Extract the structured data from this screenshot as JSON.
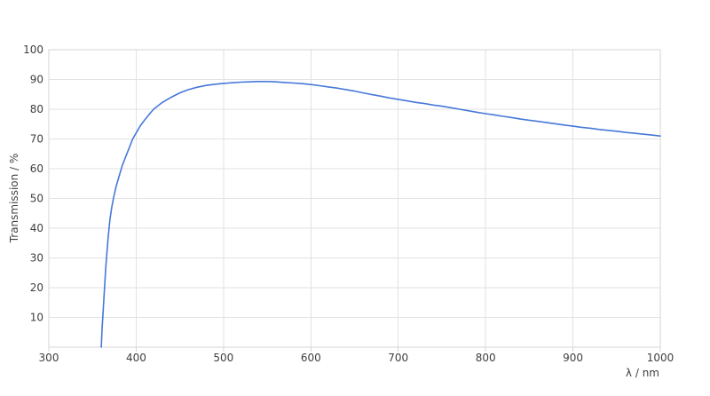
{
  "chart_data": {
    "type": "line",
    "title": "",
    "xlabel": "λ / nm",
    "ylabel": "Transmission / %",
    "xlim": [
      300,
      1000
    ],
    "ylim": [
      0,
      100
    ],
    "xticks": [
      300,
      400,
      500,
      600,
      700,
      800,
      900,
      1000
    ],
    "yticks": [
      10,
      20,
      30,
      40,
      50,
      60,
      70,
      80,
      90,
      100
    ],
    "grid": true,
    "legend": false,
    "colors": {
      "line": "#4678d8",
      "grid": "#e2e2e2",
      "border": "#d4d4d4",
      "text": "#3f3f3f",
      "background": "#ffffff"
    },
    "series": [
      {
        "name": "Transmission",
        "color": "#4678d8",
        "points": [
          [
            360,
            0
          ],
          [
            361,
            6
          ],
          [
            362,
            11
          ],
          [
            363,
            16
          ],
          [
            364,
            21
          ],
          [
            365,
            26
          ],
          [
            366,
            30
          ],
          [
            368,
            37
          ],
          [
            370,
            43
          ],
          [
            372,
            47
          ],
          [
            374,
            50
          ],
          [
            377,
            54
          ],
          [
            380,
            57
          ],
          [
            384,
            61
          ],
          [
            388,
            64
          ],
          [
            392,
            67
          ],
          [
            396,
            70
          ],
          [
            400,
            72
          ],
          [
            405,
            74.5
          ],
          [
            410,
            76.5
          ],
          [
            415,
            78.3
          ],
          [
            420,
            80
          ],
          [
            430,
            82.3
          ],
          [
            440,
            84
          ],
          [
            450,
            85.5
          ],
          [
            460,
            86.6
          ],
          [
            470,
            87.4
          ],
          [
            480,
            88
          ],
          [
            490,
            88.4
          ],
          [
            500,
            88.7
          ],
          [
            510,
            88.9
          ],
          [
            520,
            89.1
          ],
          [
            530,
            89.2
          ],
          [
            540,
            89.3
          ],
          [
            550,
            89.3
          ],
          [
            560,
            89.2
          ],
          [
            570,
            89
          ],
          [
            580,
            88.8
          ],
          [
            590,
            88.6
          ],
          [
            600,
            88.3
          ],
          [
            610,
            87.9
          ],
          [
            620,
            87.5
          ],
          [
            630,
            87.1
          ],
          [
            640,
            86.6
          ],
          [
            650,
            86.1
          ],
          [
            660,
            85.5
          ],
          [
            670,
            84.9
          ],
          [
            680,
            84.4
          ],
          [
            690,
            83.8
          ],
          [
            700,
            83.3
          ],
          [
            710,
            82.8
          ],
          [
            720,
            82.3
          ],
          [
            730,
            81.9
          ],
          [
            740,
            81.4
          ],
          [
            750,
            81
          ],
          [
            760,
            80.5
          ],
          [
            770,
            80
          ],
          [
            780,
            79.5
          ],
          [
            790,
            79
          ],
          [
            800,
            78.5
          ],
          [
            810,
            78.1
          ],
          [
            820,
            77.6
          ],
          [
            830,
            77.2
          ],
          [
            840,
            76.7
          ],
          [
            850,
            76.3
          ],
          [
            860,
            75.9
          ],
          [
            870,
            75.5
          ],
          [
            880,
            75.1
          ],
          [
            890,
            74.7
          ],
          [
            900,
            74.3
          ],
          [
            910,
            73.9
          ],
          [
            920,
            73.6
          ],
          [
            930,
            73.2
          ],
          [
            940,
            72.9
          ],
          [
            950,
            72.6
          ],
          [
            960,
            72.2
          ],
          [
            970,
            71.9
          ],
          [
            980,
            71.6
          ],
          [
            990,
            71.3
          ],
          [
            1000,
            71
          ]
        ]
      }
    ]
  }
}
